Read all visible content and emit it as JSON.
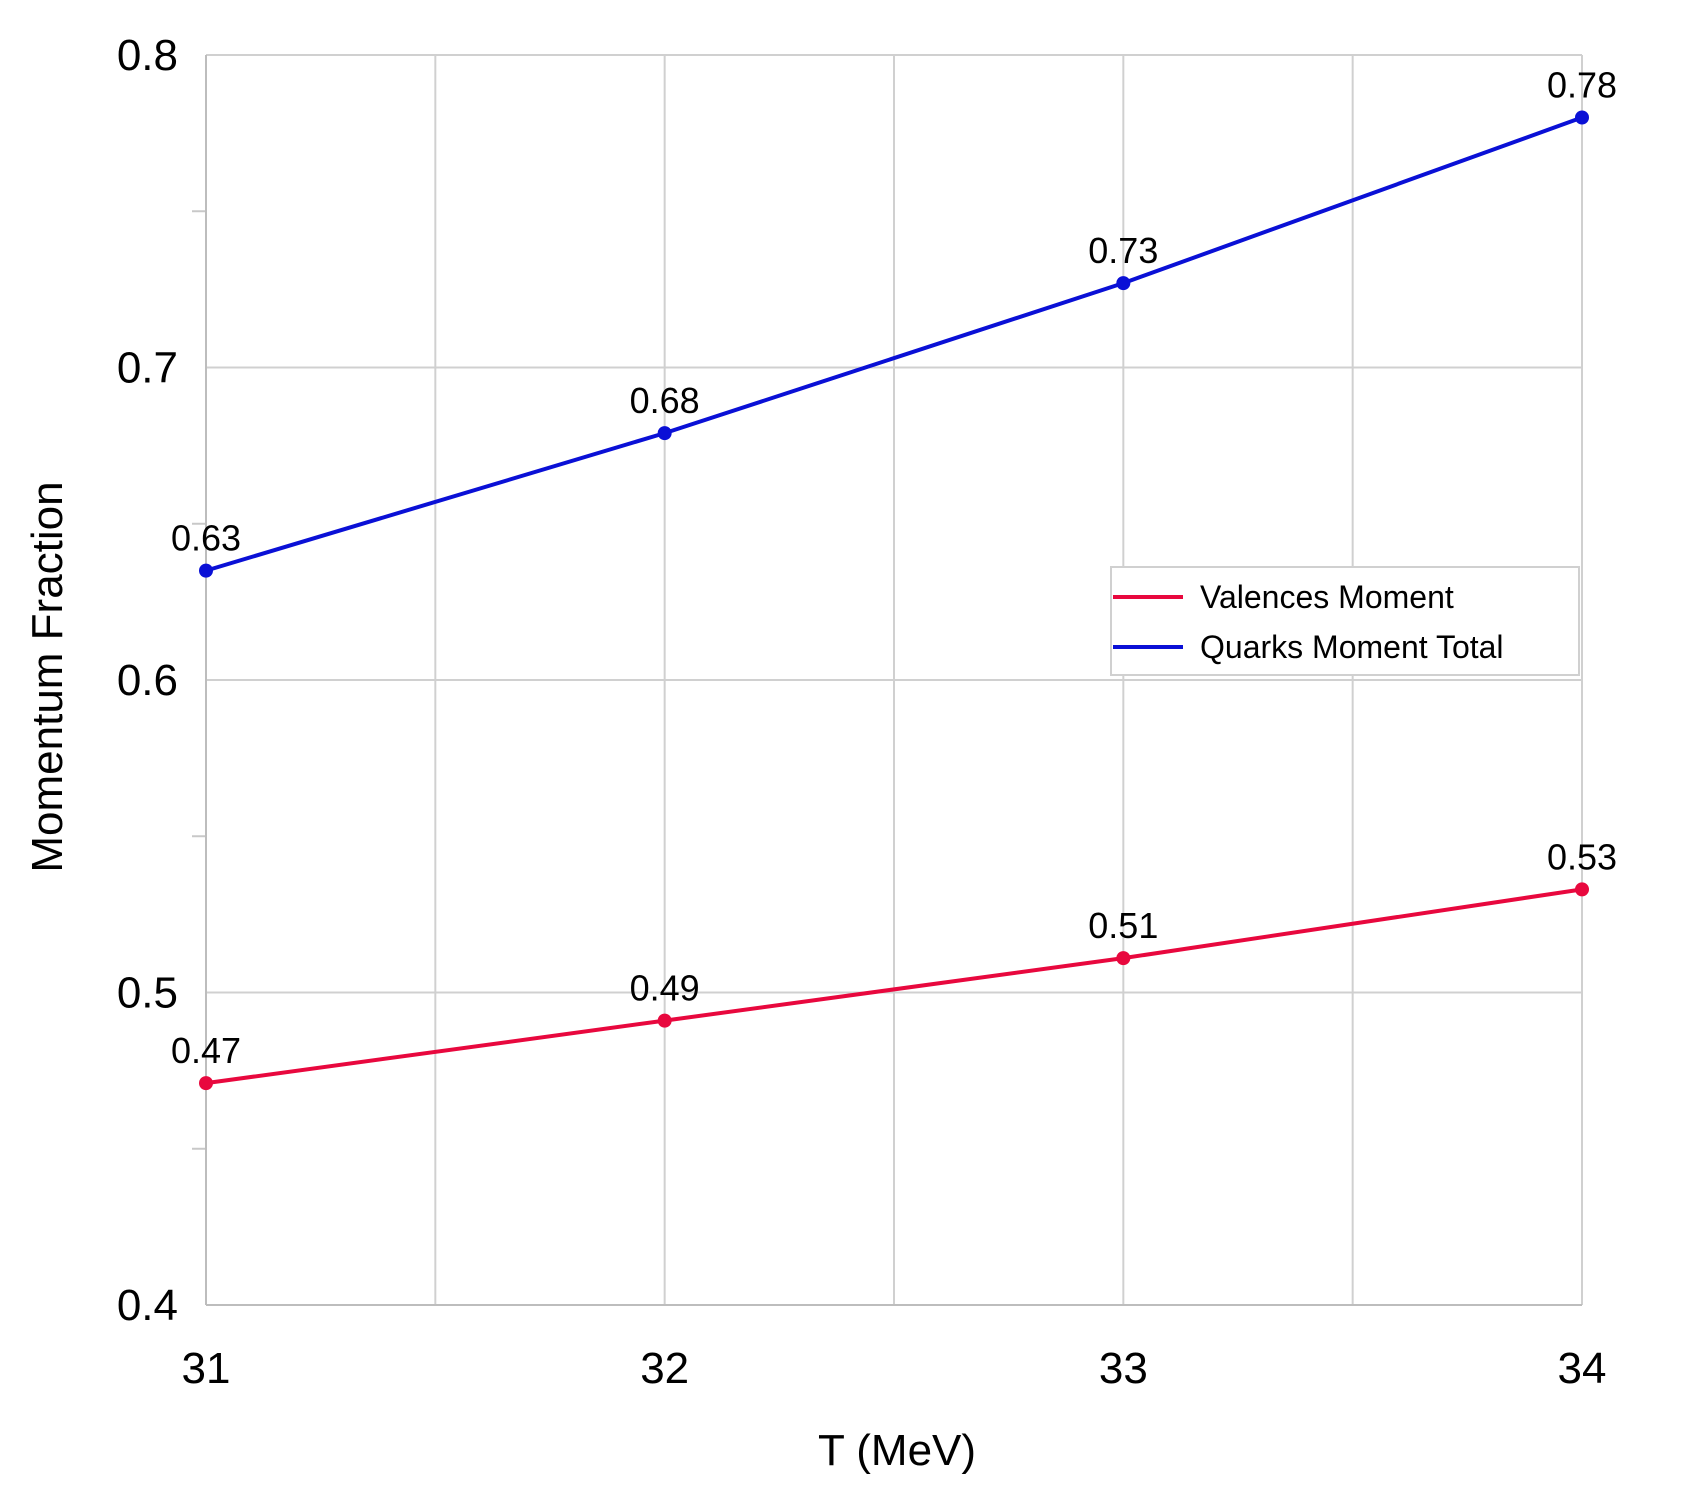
{
  "chart_data": {
    "type": "line",
    "title": "",
    "xlabel": "T (MeV)",
    "ylabel": "Momentum Fraction",
    "x": [
      31,
      32,
      33,
      34
    ],
    "xlim": [
      31,
      34
    ],
    "ylim": [
      0.4,
      0.8
    ],
    "x_ticks": [
      "31",
      "32",
      "33",
      "34"
    ],
    "y_ticks": [
      "0.4",
      "0.5",
      "0.6",
      "0.7",
      "0.8"
    ],
    "grid": true,
    "legend_position": "right-middle",
    "series": [
      {
        "name": "Valences Moment",
        "color": "#e8083e",
        "values": [
          0.471,
          0.491,
          0.511,
          0.533
        ],
        "labels": [
          "0.47",
          "0.49",
          "0.51",
          "0.53"
        ]
      },
      {
        "name": "Quarks Moment Total",
        "color": "#0a10d6",
        "values": [
          0.635,
          0.679,
          0.727,
          0.78
        ],
        "labels": [
          "0.63",
          "0.68",
          "0.73",
          "0.78"
        ]
      }
    ]
  }
}
